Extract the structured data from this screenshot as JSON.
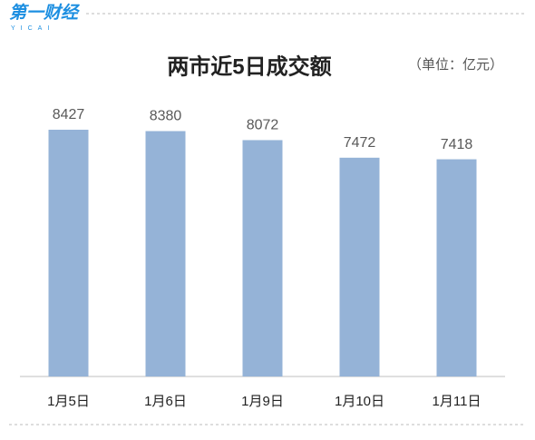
{
  "logo": {
    "name": "第一财经",
    "sub": "YICAI"
  },
  "chart_data": {
    "type": "bar",
    "title": "两市近5日成交额",
    "unit": "（单位：亿元）",
    "categories": [
      "1月5日",
      "1月6日",
      "1月9日",
      "1月10日",
      "1月11日"
    ],
    "values": [
      8427,
      8380,
      8072,
      7472,
      7418
    ],
    "color": "#95b3d7",
    "ylim": [
      0,
      9000
    ],
    "grid": false,
    "data_labels": true
  }
}
